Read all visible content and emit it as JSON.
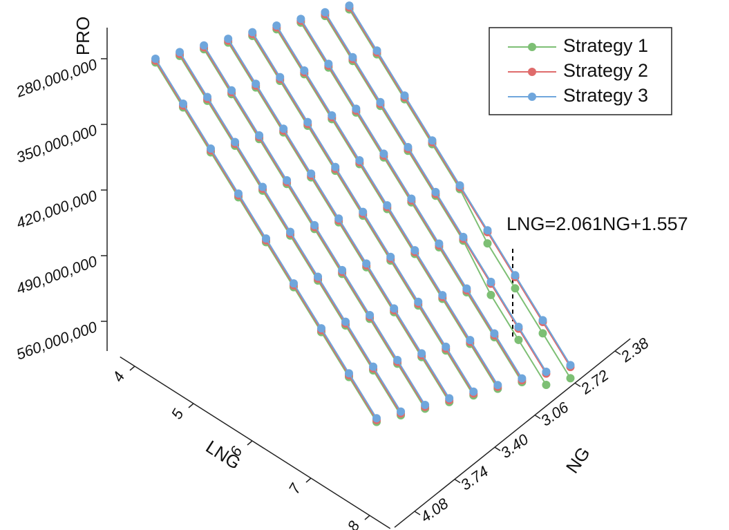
{
  "chart_data": {
    "type": "line3d",
    "x_label": "LNG",
    "z_label": "NG",
    "y_label": "PRO",
    "annotation": "LNG=2.061NG+1.557",
    "x": [
      4,
      4.5,
      5,
      5.5,
      6,
      6.5,
      7,
      7.5,
      8
    ],
    "z": [
      4.08,
      3.8675,
      3.655,
      3.4425,
      3.23,
      3.0175,
      2.805,
      2.5925,
      2.38
    ],
    "xlim": [
      3.75,
      8.35
    ],
    "xticks": [
      4,
      5,
      6,
      7,
      8
    ],
    "zlim": [
      2.25,
      4.25
    ],
    "zticks": [
      2.38,
      2.72,
      3.06,
      {
        "value": 3.4,
        "label": "3.40"
      },
      3.74,
      4.08
    ],
    "ylim": [
      280000000,
      560000000
    ],
    "yticks": [
      {
        "value": 280000000,
        "label": "280,000,000"
      },
      {
        "value": 350000000,
        "label": "350,000,000"
      },
      {
        "value": 420000000,
        "label": "420,000,000"
      },
      {
        "value": 490000000,
        "label": "490,000,000"
      },
      {
        "value": 560000000,
        "label": "560,000,000"
      }
    ],
    "series": [
      {
        "name": "Strategy 1",
        "color": "#7dbf74",
        "values": [
          [
            284000000,
            316000000,
            348000000,
            380000000,
            412000000,
            444000000,
            476000000,
            508000000,
            540000000
          ],
          [
            300000000,
            332000000,
            364000000,
            396000000,
            428000000,
            460000000,
            492000000,
            524000000,
            556000000
          ],
          [
            316000000,
            348000000,
            380000000,
            412000000,
            444000000,
            476000000,
            508000000,
            540000000,
            572000000
          ],
          [
            332000000,
            364000000,
            396000000,
            428000000,
            460000000,
            492000000,
            524000000,
            556000000,
            588000000
          ],
          [
            348000000,
            380000000,
            412000000,
            444000000,
            476000000,
            508000000,
            540000000,
            572000000,
            604000000
          ],
          [
            364000000,
            396000000,
            428000000,
            460000000,
            492000000,
            524000000,
            556000000,
            588000000,
            620000000
          ],
          [
            380000000,
            412000000,
            444000000,
            476000000,
            508000000,
            540000000,
            572000000,
            604000000,
            636000000
          ],
          [
            396000000,
            428000000,
            460000000,
            492000000,
            524000000,
            556000000,
            598000000,
            630000000,
            662000000
          ],
          [
            412000000,
            444000000,
            476000000,
            508000000,
            540000000,
            582000000,
            614000000,
            646000000,
            678000000
          ]
        ]
      },
      {
        "name": "Strategy 2",
        "color": "#df6b6b",
        "values": [
          [
            282000000,
            314000000,
            346000000,
            378000000,
            410000000,
            442000000,
            474000000,
            506000000,
            538000000
          ],
          [
            298000000,
            330000000,
            362000000,
            394000000,
            426000000,
            458000000,
            490000000,
            522000000,
            554000000
          ],
          [
            314000000,
            346000000,
            378000000,
            410000000,
            442000000,
            474000000,
            506000000,
            538000000,
            570000000
          ],
          [
            330000000,
            362000000,
            394000000,
            426000000,
            458000000,
            490000000,
            522000000,
            554000000,
            586000000
          ],
          [
            346000000,
            378000000,
            410000000,
            442000000,
            474000000,
            506000000,
            538000000,
            570000000,
            602000000
          ],
          [
            362000000,
            394000000,
            426000000,
            458000000,
            490000000,
            522000000,
            554000000,
            586000000,
            618000000
          ],
          [
            378000000,
            410000000,
            442000000,
            474000000,
            506000000,
            538000000,
            570000000,
            602000000,
            634000000
          ],
          [
            394000000,
            426000000,
            458000000,
            490000000,
            522000000,
            554000000,
            586000000,
            618000000,
            650000000
          ],
          [
            410000000,
            442000000,
            474000000,
            506000000,
            538000000,
            570000000,
            602000000,
            634000000,
            666000000
          ]
        ]
      },
      {
        "name": "Strategy 3",
        "color": "#6fa6dc",
        "values": [
          [
            280000000,
            312000000,
            344000000,
            376000000,
            408000000,
            440000000,
            472000000,
            504000000,
            536000000
          ],
          [
            296000000,
            328000000,
            360000000,
            392000000,
            424000000,
            456000000,
            488000000,
            520000000,
            552000000
          ],
          [
            312000000,
            344000000,
            376000000,
            408000000,
            440000000,
            472000000,
            504000000,
            536000000,
            568000000
          ],
          [
            328000000,
            360000000,
            392000000,
            424000000,
            456000000,
            488000000,
            520000000,
            552000000,
            584000000
          ],
          [
            344000000,
            376000000,
            408000000,
            440000000,
            472000000,
            504000000,
            536000000,
            568000000,
            600000000
          ],
          [
            360000000,
            392000000,
            424000000,
            456000000,
            488000000,
            520000000,
            552000000,
            584000000,
            616000000
          ],
          [
            376000000,
            408000000,
            440000000,
            472000000,
            504000000,
            536000000,
            568000000,
            600000000,
            632000000
          ],
          [
            392000000,
            424000000,
            456000000,
            488000000,
            520000000,
            552000000,
            584000000,
            616000000,
            648000000
          ],
          [
            408000000,
            440000000,
            472000000,
            504000000,
            536000000,
            568000000,
            600000000,
            632000000,
            664000000
          ]
        ]
      }
    ],
    "legend": "top-right"
  }
}
